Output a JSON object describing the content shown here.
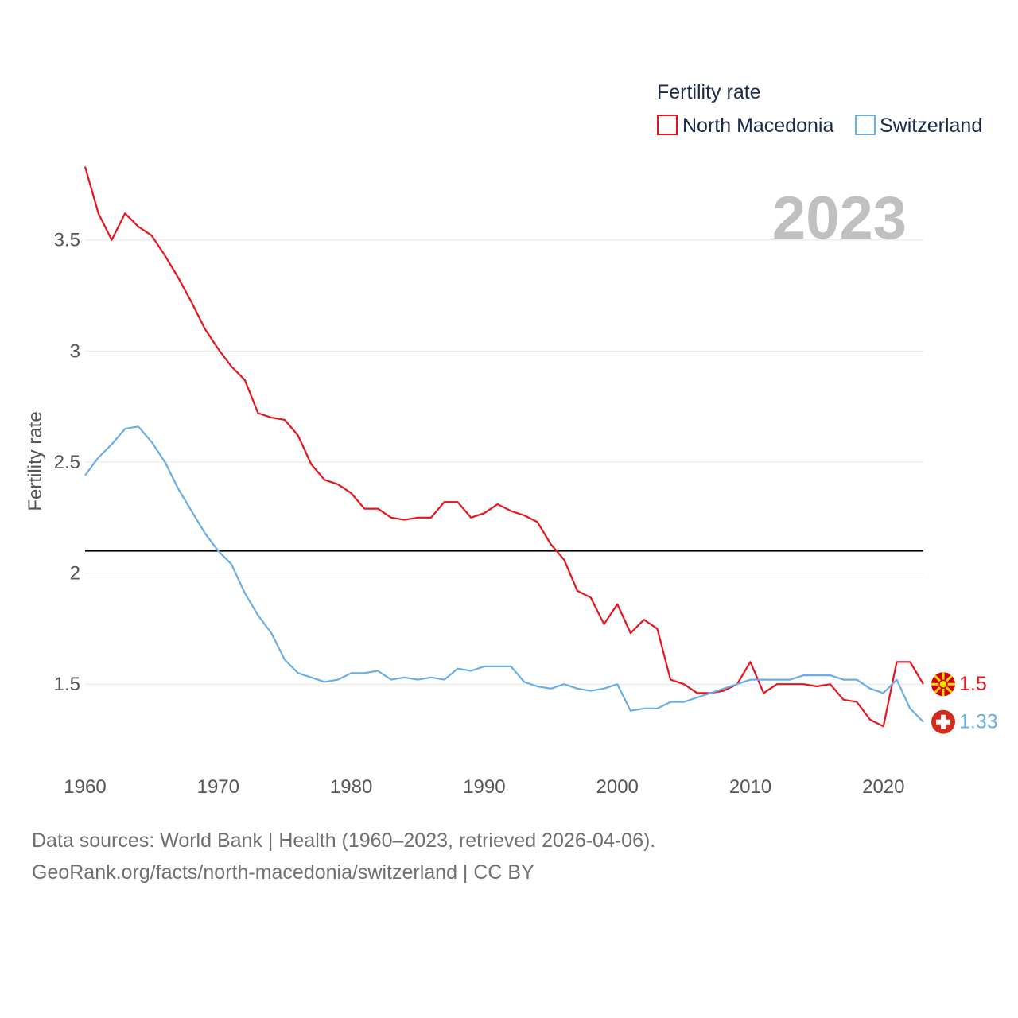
{
  "chart_data": {
    "type": "line",
    "title": "Fertility rate",
    "year_label": "2023",
    "ylabel": "Fertility rate",
    "xlabel": "",
    "xlim": [
      1960,
      2023
    ],
    "ylim": [
      1.2,
      3.85
    ],
    "x_ticks": [
      1960,
      1970,
      1980,
      1990,
      2000,
      2010,
      2020
    ],
    "y_ticks": [
      1.5,
      2,
      2.5,
      3,
      3.5
    ],
    "y_tick_labels": [
      "1.5",
      "2",
      "2.5",
      "3",
      "3.5"
    ],
    "reference_line": 2.1,
    "grid": true,
    "legend": "top-right",
    "x": [
      1960,
      1961,
      1962,
      1963,
      1964,
      1965,
      1966,
      1967,
      1968,
      1969,
      1970,
      1971,
      1972,
      1973,
      1974,
      1975,
      1976,
      1977,
      1978,
      1979,
      1980,
      1981,
      1982,
      1983,
      1984,
      1985,
      1986,
      1987,
      1988,
      1989,
      1990,
      1991,
      1992,
      1993,
      1994,
      1995,
      1996,
      1997,
      1998,
      1999,
      2000,
      2001,
      2002,
      2003,
      2004,
      2005,
      2006,
      2007,
      2008,
      2009,
      2010,
      2011,
      2012,
      2013,
      2014,
      2015,
      2016,
      2017,
      2018,
      2019,
      2020,
      2021,
      2022,
      2023
    ],
    "series": [
      {
        "name": "North Macedonia",
        "color": "#e8141c",
        "end_label": "1.5",
        "values": [
          3.83,
          3.62,
          3.5,
          3.62,
          3.56,
          3.52,
          3.43,
          3.33,
          3.22,
          3.1,
          3.01,
          2.93,
          2.87,
          2.72,
          2.7,
          2.69,
          2.62,
          2.49,
          2.42,
          2.4,
          2.36,
          2.29,
          2.29,
          2.25,
          2.24,
          2.25,
          2.25,
          2.32,
          2.32,
          2.25,
          2.27,
          2.31,
          2.28,
          2.26,
          2.23,
          2.13,
          2.06,
          1.92,
          1.89,
          1.77,
          1.86,
          1.73,
          1.79,
          1.75,
          1.52,
          1.5,
          1.46,
          1.46,
          1.47,
          1.5,
          1.6,
          1.46,
          1.5,
          1.5,
          1.5,
          1.49,
          1.5,
          1.43,
          1.42,
          1.34,
          1.31,
          1.6,
          1.6,
          1.5
        ]
      },
      {
        "name": "Switzerland",
        "color": "#6aaee6",
        "end_label": "1.33",
        "values": [
          2.44,
          2.52,
          2.58,
          2.65,
          2.66,
          2.59,
          2.5,
          2.38,
          2.28,
          2.18,
          2.1,
          2.04,
          1.91,
          1.81,
          1.73,
          1.61,
          1.55,
          1.53,
          1.51,
          1.52,
          1.55,
          1.55,
          1.56,
          1.52,
          1.53,
          1.52,
          1.53,
          1.52,
          1.57,
          1.56,
          1.58,
          1.58,
          1.58,
          1.51,
          1.49,
          1.48,
          1.5,
          1.48,
          1.47,
          1.48,
          1.5,
          1.38,
          1.39,
          1.39,
          1.42,
          1.42,
          1.44,
          1.46,
          1.48,
          1.5,
          1.52,
          1.52,
          1.52,
          1.52,
          1.54,
          1.54,
          1.54,
          1.52,
          1.52,
          1.48,
          1.46,
          1.52,
          1.39,
          1.33
        ]
      }
    ]
  },
  "footer": {
    "line1": "Data sources: World Bank | Health (1960–2023, retrieved 2026-04-06).",
    "line2": "GeoRank.org/facts/north-macedonia/switzerland | CC BY"
  }
}
